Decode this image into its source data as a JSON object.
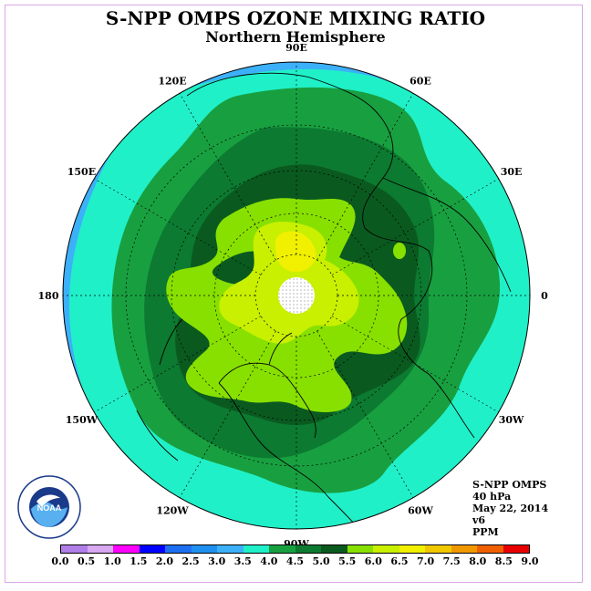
{
  "title": "S-NPP OMPS OZONE MIXING RATIO",
  "subtitle": "Northern Hemisphere",
  "info": {
    "instrument": "S-NPP OMPS",
    "level": "40 hPa",
    "date": "May 22, 2014",
    "version": "v6",
    "units": "PPM"
  },
  "longitude_labels": [
    {
      "label": "90E",
      "lon": 90
    },
    {
      "label": "60E",
      "lon": 60
    },
    {
      "label": "30E",
      "lon": 30
    },
    {
      "label": "0",
      "lon": 0
    },
    {
      "label": "30W",
      "lon": -30
    },
    {
      "label": "60W",
      "lon": -60
    },
    {
      "label": "90W",
      "lon": -90
    },
    {
      "label": "120W",
      "lon": -120
    },
    {
      "label": "150W",
      "lon": -150
    },
    {
      "label": "180",
      "lon": 180
    },
    {
      "label": "150E",
      "lon": 150
    },
    {
      "label": "120E",
      "lon": 120
    }
  ],
  "logo_text": "NOAA",
  "colorbar": {
    "ticks": [
      "0.0",
      "0.5",
      "1.0",
      "1.5",
      "2.0",
      "2.5",
      "3.0",
      "3.5",
      "4.0",
      "4.5",
      "5.0",
      "5.5",
      "6.0",
      "6.5",
      "7.0",
      "7.5",
      "8.0",
      "8.5",
      "9.0"
    ],
    "colors": [
      "#b07ee8",
      "#d8a8f0",
      "#ff00ff",
      "#0000ff",
      "#1e6ff0",
      "#2090f0",
      "#3cb0f8",
      "#20f0c8",
      "#18a040",
      "#0c7a30",
      "#0a5a20",
      "#88e000",
      "#c8f000",
      "#f0f000",
      "#f0c800",
      "#f09800",
      "#f06000",
      "#e80000",
      "#806040"
    ]
  },
  "map_colors": {
    "band_3_0": "#3cb0f8",
    "band_3_5": "#20f0c8",
    "band_4_0": "#18a040",
    "band_4_5": "#0c7a30",
    "band_5_0": "#0a5a20",
    "band_5_5": "#88e000",
    "band_6_0": "#c8f000",
    "band_6_5": "#f0f000",
    "no_data": "#ffffff"
  }
}
